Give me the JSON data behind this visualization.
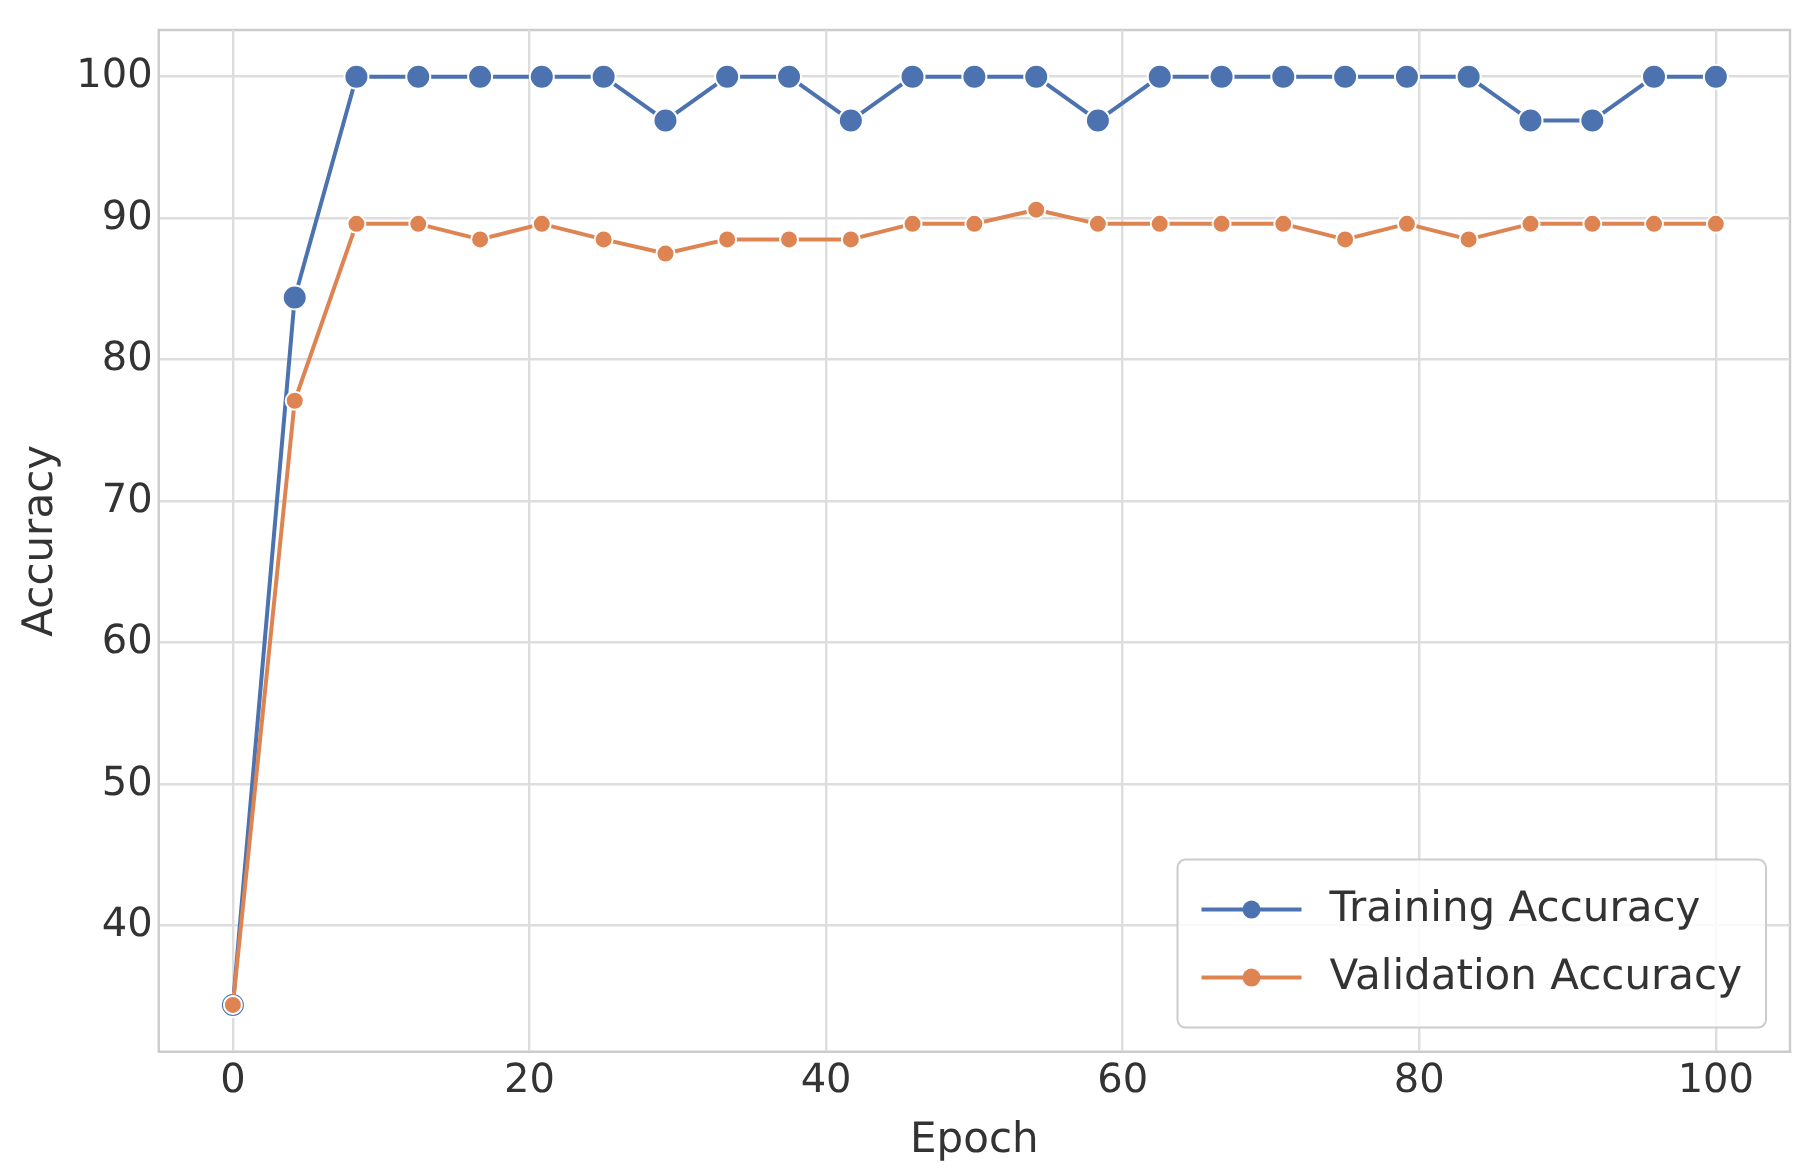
{
  "chart_data": {
    "type": "line",
    "xlabel": "Epoch",
    "ylabel": "Accuracy",
    "x": [
      0,
      4.17,
      8.33,
      12.5,
      16.67,
      20.83,
      25,
      29.17,
      33.33,
      37.5,
      41.67,
      45.83,
      50,
      54.17,
      58.33,
      62.5,
      66.67,
      70.83,
      75,
      79.17,
      83.33,
      87.5,
      91.67,
      95.83,
      100
    ],
    "series": [
      {
        "name": "Training Accuracy",
        "color": "#4c72b0",
        "values": [
          34.4,
          84.4,
          100,
          100,
          100,
          100,
          100,
          96.9,
          100,
          100,
          96.9,
          100,
          100,
          100,
          96.9,
          100,
          100,
          100,
          100,
          100,
          100,
          96.9,
          96.9,
          100,
          100
        ]
      },
      {
        "name": "Validation Accuracy",
        "color": "#dd8452",
        "values": [
          34.4,
          77.1,
          89.6,
          89.6,
          88.5,
          89.6,
          88.5,
          87.5,
          88.5,
          88.5,
          88.5,
          89.6,
          89.6,
          90.6,
          89.6,
          89.6,
          89.6,
          89.6,
          88.5,
          89.6,
          88.5,
          89.6,
          89.6,
          89.6,
          89.6
        ]
      }
    ],
    "xlim": [
      -5,
      105
    ],
    "xticks": [
      0,
      20,
      40,
      60,
      80,
      100
    ],
    "ylim": [
      31.1,
      103.3
    ],
    "yticks": [
      40,
      50,
      60,
      70,
      80,
      90,
      100
    ],
    "grid": true,
    "legend": "bottom right",
    "marker": "circle",
    "line_style": "solid"
  }
}
